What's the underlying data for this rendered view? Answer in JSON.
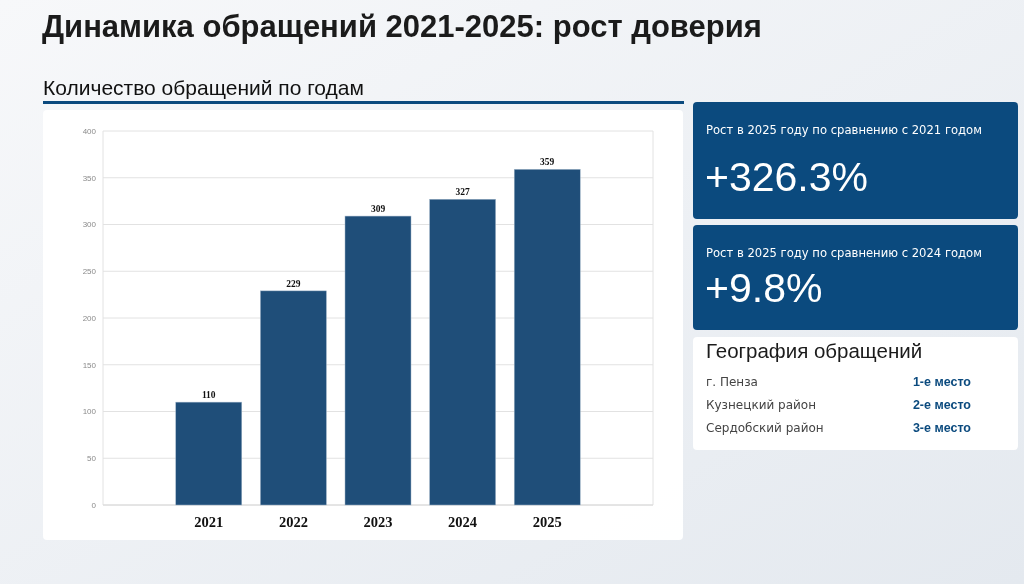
{
  "chart_data": [
    {
      "type": "bar",
      "title": "Динамика обращений 2021-2025: рост доверия",
      "subtitle": "Количество обращений по годам",
      "categories": [
        "2021",
        "2022",
        "2023",
        "2024",
        "2025"
      ],
      "values": [
        110,
        229,
        309,
        327,
        359
      ],
      "color": "#1f4e79",
      "ylim": [
        0,
        400
      ],
      "yticks": [
        0,
        50,
        100,
        150,
        200,
        250,
        300,
        350,
        400
      ],
      "grid": "y",
      "data_labels": true
    },
    {
      "type": "other",
      "title": "Рост в 2025 году по сравнению с 2021 годом",
      "annotations": [
        "+326.3%"
      ]
    },
    {
      "type": "other",
      "title": "Рост в 2025 году по сравнению с 2024 годом",
      "annotations": [
        "+9.8%"
      ]
    },
    {
      "type": "other",
      "title": "География обращений",
      "annotations": [
        "г. Пенза",
        "1-е место",
        "Кузнецкий район",
        "2-е место",
        "Сердобский район",
        "3-е место"
      ]
    }
  ]
}
